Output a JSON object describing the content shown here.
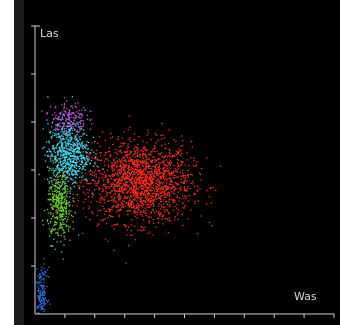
{
  "chart_data": {
    "type": "scatter",
    "title": "",
    "xlabel": "Was",
    "ylabel": "Las",
    "xlim": [
      0,
      1
    ],
    "ylim": [
      0,
      1
    ],
    "grid": false,
    "legend": "none",
    "background": "#000000",
    "series": [
      {
        "color": "#ff2b1a",
        "center": [
          0.35,
          0.46
        ],
        "spread": [
          0.085,
          0.07
        ],
        "count": 1800
      },
      {
        "color": "#3fd6ea",
        "center": [
          0.11,
          0.56
        ],
        "spread": [
          0.035,
          0.055
        ],
        "count": 700
      },
      {
        "color": "#c056d6",
        "center": [
          0.11,
          0.68
        ],
        "spread": [
          0.03,
          0.03
        ],
        "count": 170
      },
      {
        "color": "#6ecf2a",
        "center": [
          0.08,
          0.38
        ],
        "spread": [
          0.02,
          0.06
        ],
        "count": 380
      },
      {
        "color": "#2f6cd8",
        "center": [
          0.02,
          0.07
        ],
        "spread": [
          0.01,
          0.045
        ],
        "count": 160
      }
    ]
  }
}
